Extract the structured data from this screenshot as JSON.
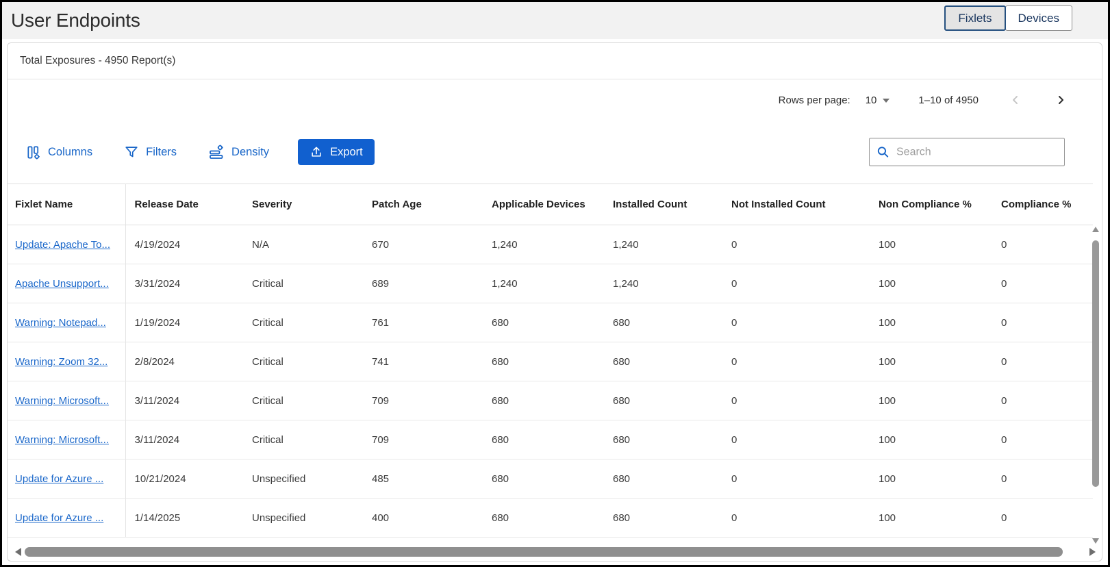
{
  "header": {
    "title": "User Endpoints",
    "toggle": [
      {
        "label": "Fixlets",
        "selected": true
      },
      {
        "label": "Devices",
        "selected": false
      }
    ]
  },
  "summary": {
    "text": "Total Exposures - 4950 Report(s)"
  },
  "pagination": {
    "rows_per_page_label": "Rows per page:",
    "rows_per_page_value": "10",
    "range_text": "1–10 of 4950",
    "prev_enabled": false,
    "next_enabled": true
  },
  "toolbar": {
    "columns_label": "Columns",
    "filters_label": "Filters",
    "density_label": "Density",
    "export_label": "Export",
    "search_placeholder": "Search"
  },
  "icons": [
    "columns-icon",
    "filter-funnel-icon",
    "density-icon",
    "export-upload-icon",
    "search-icon",
    "caret-down-icon",
    "chevron-left-icon",
    "chevron-right-icon",
    "scroll-up-arrow",
    "scroll-down-arrow",
    "scroll-left-arrow",
    "scroll-right-arrow"
  ],
  "colors": {
    "accent_blue": "#1765c8",
    "export_button_bg": "#1160cf",
    "link_blue": "#1a67ca",
    "navy_text": "#16335c",
    "selected_toggle_border": "#25507f",
    "top_band_bg": "#f2f2f2",
    "border_gray": "#d7d7d7"
  },
  "table": {
    "columns": [
      "Fixlet Name",
      "Release Date",
      "Severity",
      "Patch Age",
      "Applicable Devices",
      "Installed Count",
      "Not Installed Count",
      "Non Compliance %",
      "Compliance %"
    ],
    "rows": [
      [
        "Update: Apache To...",
        "4/19/2024",
        "N/A",
        "670",
        "1,240",
        "1,240",
        "0",
        "100",
        "0"
      ],
      [
        "Apache Unsupport...",
        "3/31/2024",
        "Critical",
        "689",
        "1,240",
        "1,240",
        "0",
        "100",
        "0"
      ],
      [
        "Warning: Notepad...",
        "1/19/2024",
        "Critical",
        "761",
        "680",
        "680",
        "0",
        "100",
        "0"
      ],
      [
        "Warning: Zoom 32...",
        "2/8/2024",
        "Critical",
        "741",
        "680",
        "680",
        "0",
        "100",
        "0"
      ],
      [
        "Warning: Microsoft...",
        "3/11/2024",
        "Critical",
        "709",
        "680",
        "680",
        "0",
        "100",
        "0"
      ],
      [
        "Warning: Microsoft...",
        "3/11/2024",
        "Critical",
        "709",
        "680",
        "680",
        "0",
        "100",
        "0"
      ],
      [
        "Update for Azure ...",
        "10/21/2024",
        "Unspecified",
        "485",
        "680",
        "680",
        "0",
        "100",
        "0"
      ],
      [
        "Update for Azure ...",
        "1/14/2025",
        "Unspecified",
        "400",
        "680",
        "680",
        "0",
        "100",
        "0"
      ]
    ]
  }
}
